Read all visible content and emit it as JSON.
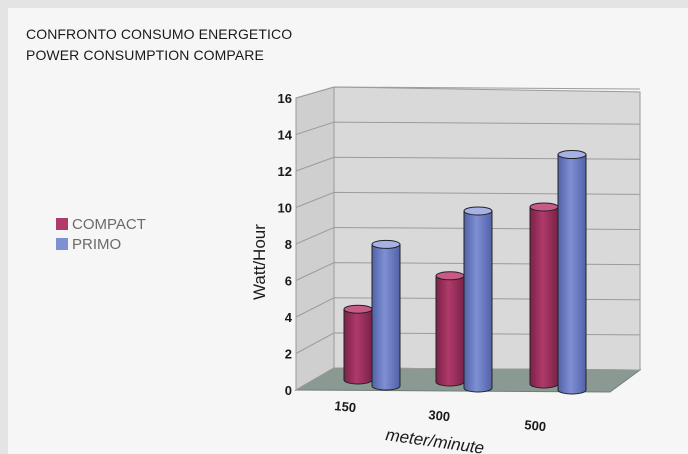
{
  "title_it": "CONFRONTO CONSUMO ENERGETICO",
  "title_en": "POWER CONSUMPTION COMPARE",
  "colors": {
    "compact": "#b03a6a",
    "primo": "#7f8fd4"
  },
  "chart_data": {
    "type": "bar",
    "title": "",
    "categories": [
      "150",
      "300",
      "500"
    ],
    "series": [
      {
        "name": "COMPACT",
        "values": [
          4,
          6,
          10
        ]
      },
      {
        "name": "PRIMO",
        "values": [
          8,
          10,
          13.3
        ]
      }
    ],
    "xlabel": "meter/minute",
    "ylabel": "Watt/Hour",
    "ylim": [
      0,
      16
    ],
    "yticks": [
      "0",
      "2",
      "4",
      "6",
      "8",
      "10",
      "12",
      "14",
      "16"
    ],
    "grid": true,
    "legend_position": "left"
  }
}
